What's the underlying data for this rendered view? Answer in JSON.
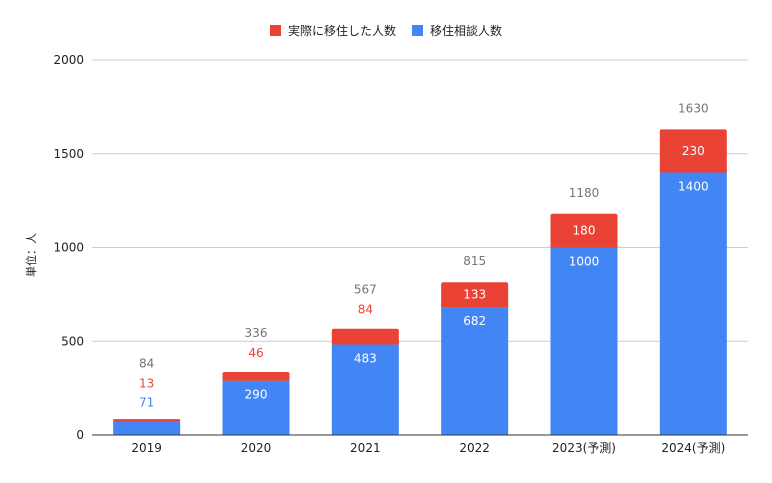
{
  "colors": {
    "moved": "#ea4335",
    "consult": "#4285f4",
    "grid": "#cccccc",
    "axis": "#333333",
    "total_label": "#757575",
    "text": "#222222"
  },
  "chart_data": {
    "type": "bar",
    "stacked": true,
    "categories": [
      "2019",
      "2020",
      "2021",
      "2022",
      "2023(予測)",
      "2024(予測)"
    ],
    "series": [
      {
        "name": "移住相談人数",
        "values": [
          71,
          290,
          483,
          682,
          1000,
          1400
        ],
        "color": "#4285f4"
      },
      {
        "name": "実際に移住した人数",
        "values": [
          13,
          46,
          84,
          133,
          180,
          230
        ],
        "color": "#ea4335"
      }
    ],
    "totals": [
      84,
      336,
      567,
      815,
      1180,
      1630
    ],
    "ylabel": "単位：人",
    "ylim": [
      0,
      2000
    ],
    "yticks": [
      0,
      500,
      1000,
      1500,
      2000
    ],
    "legend_position": "top",
    "grid": true
  }
}
